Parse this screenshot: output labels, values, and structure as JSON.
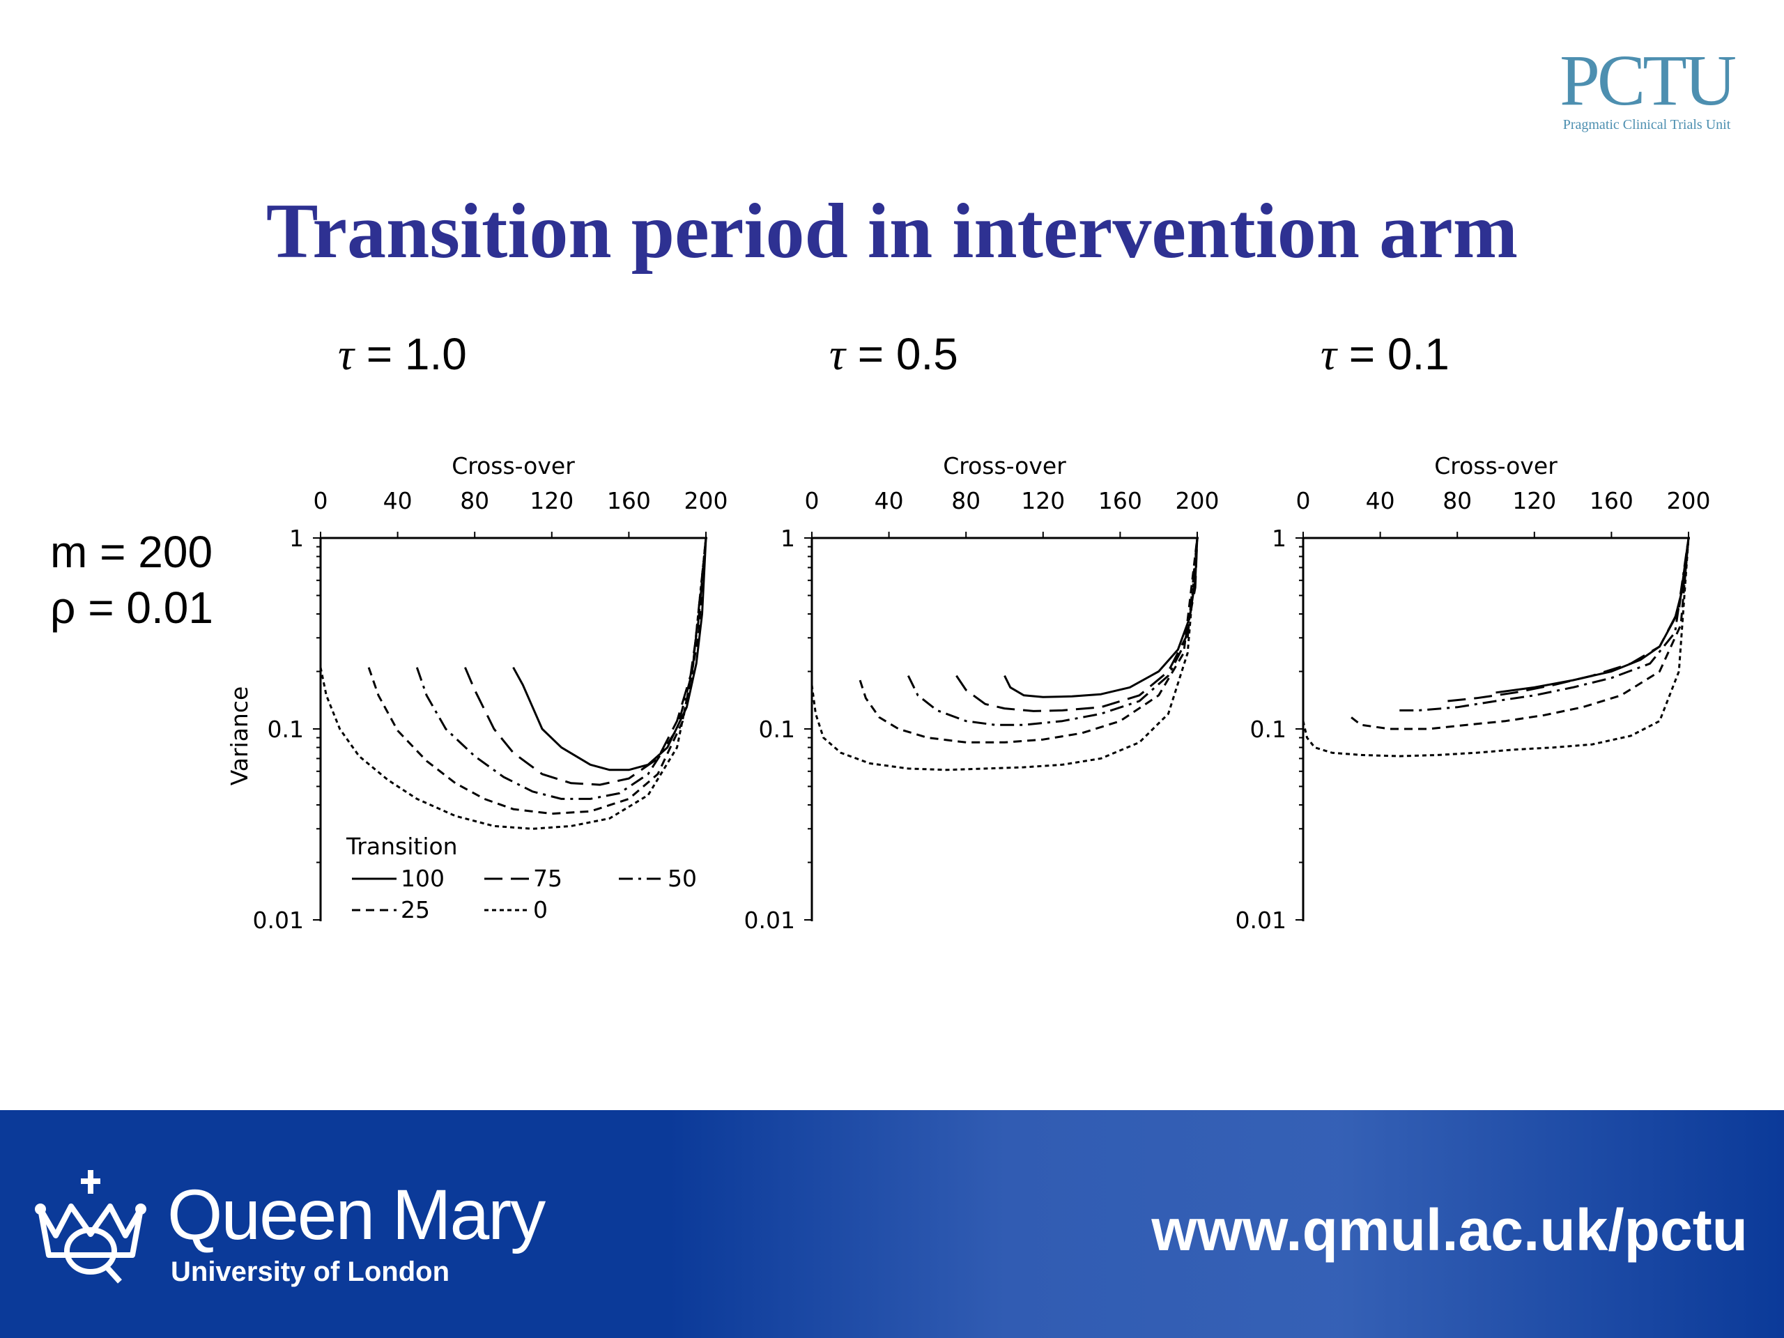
{
  "logo": {
    "mark": "PCTU",
    "subtitle": "Pragmatic Clinical Trials Unit"
  },
  "slide_title": "Transition period in intervention arm",
  "params": {
    "m_label": "m = 200",
    "rho_label": "ρ = 0.01"
  },
  "footer": {
    "brand_name": "Queen Mary",
    "brand_sub": "University of London",
    "url": "www.qmul.ac.uk/pctu",
    "background_color": "#0b3a99"
  },
  "legend": {
    "title": "Transition",
    "entries": [
      "100",
      "75",
      "50",
      "25",
      "0"
    ]
  },
  "chart_data": [
    {
      "type": "line",
      "title": "τ = 1.0",
      "xlabel": "Cross-over",
      "ylabel": "Variance",
      "x_ticks": [
        0,
        40,
        80,
        120,
        160,
        200
      ],
      "y_ticks": [
        "1",
        "0.1",
        "0.01"
      ],
      "xlim": [
        0,
        200
      ],
      "ylim": [
        0.01,
        1
      ],
      "y_scale": "log",
      "x_axis_position": "top",
      "legend_placement": "bottom-left",
      "series": [
        {
          "name": "100",
          "x": [
            100,
            105,
            115,
            125,
            140,
            150,
            160,
            170,
            180,
            190,
            195,
            198,
            200
          ],
          "y": [
            0.21,
            0.17,
            0.1,
            0.08,
            0.065,
            0.061,
            0.061,
            0.065,
            0.08,
            0.13,
            0.22,
            0.4,
            1.0
          ]
        },
        {
          "name": "75",
          "x": [
            75,
            80,
            90,
            100,
            115,
            130,
            145,
            160,
            175,
            185,
            192,
            196,
            200
          ],
          "y": [
            0.21,
            0.16,
            0.1,
            0.075,
            0.058,
            0.052,
            0.051,
            0.055,
            0.07,
            0.11,
            0.19,
            0.36,
            1.0
          ]
        },
        {
          "name": "50",
          "x": [
            50,
            55,
            65,
            80,
            95,
            110,
            125,
            140,
            155,
            170,
            185,
            193,
            200
          ],
          "y": [
            0.21,
            0.15,
            0.1,
            0.072,
            0.056,
            0.047,
            0.043,
            0.043,
            0.046,
            0.058,
            0.1,
            0.2,
            1.0
          ]
        },
        {
          "name": "25",
          "x": [
            25,
            30,
            40,
            55,
            70,
            85,
            100,
            120,
            140,
            160,
            175,
            188,
            196,
            200
          ],
          "y": [
            0.21,
            0.15,
            0.098,
            0.068,
            0.052,
            0.043,
            0.038,
            0.036,
            0.037,
            0.043,
            0.058,
            0.11,
            0.3,
            1.0
          ]
        },
        {
          "name": "0",
          "x": [
            0,
            3,
            10,
            20,
            35,
            50,
            70,
            90,
            110,
            130,
            150,
            170,
            185,
            193,
            200
          ],
          "y": [
            0.21,
            0.15,
            0.1,
            0.072,
            0.054,
            0.043,
            0.035,
            0.031,
            0.03,
            0.031,
            0.034,
            0.045,
            0.08,
            0.2,
            1.0
          ]
        }
      ]
    },
    {
      "type": "line",
      "title": "τ = 0.5",
      "xlabel": "Cross-over",
      "ylabel": "",
      "x_ticks": [
        0,
        40,
        80,
        120,
        160,
        200
      ],
      "y_ticks": [
        "1",
        "0.1",
        "0.01"
      ],
      "xlim": [
        0,
        200
      ],
      "ylim": [
        0.01,
        1
      ],
      "y_scale": "log",
      "x_axis_position": "top",
      "series": [
        {
          "name": "100",
          "x": [
            100,
            103,
            110,
            120,
            135,
            150,
            165,
            180,
            190,
            196,
            199,
            200
          ],
          "y": [
            0.19,
            0.165,
            0.15,
            0.147,
            0.148,
            0.152,
            0.165,
            0.2,
            0.26,
            0.38,
            0.6,
            1.0
          ]
        },
        {
          "name": "75",
          "x": [
            75,
            80,
            90,
            100,
            115,
            130,
            150,
            170,
            185,
            194,
            199,
            200
          ],
          "y": [
            0.19,
            0.16,
            0.135,
            0.128,
            0.124,
            0.125,
            0.13,
            0.15,
            0.2,
            0.3,
            0.55,
            1.0
          ]
        },
        {
          "name": "50",
          "x": [
            50,
            55,
            65,
            80,
            95,
            110,
            130,
            150,
            170,
            185,
            195,
            200
          ],
          "y": [
            0.19,
            0.15,
            0.125,
            0.11,
            0.105,
            0.105,
            0.11,
            0.12,
            0.14,
            0.19,
            0.3,
            1.0
          ]
        },
        {
          "name": "25",
          "x": [
            25,
            28,
            35,
            45,
            60,
            80,
            100,
            120,
            140,
            160,
            180,
            193,
            200
          ],
          "y": [
            0.18,
            0.145,
            0.115,
            0.1,
            0.09,
            0.085,
            0.085,
            0.088,
            0.095,
            0.11,
            0.15,
            0.25,
            1.0
          ]
        },
        {
          "name": "0",
          "x": [
            0,
            2,
            6,
            15,
            30,
            50,
            70,
            90,
            110,
            130,
            150,
            170,
            185,
            195,
            200
          ],
          "y": [
            0.17,
            0.12,
            0.09,
            0.075,
            0.066,
            0.062,
            0.061,
            0.062,
            0.063,
            0.065,
            0.07,
            0.085,
            0.12,
            0.25,
            1.0
          ]
        }
      ]
    },
    {
      "type": "line",
      "title": "τ = 0.1",
      "xlabel": "Cross-over",
      "ylabel": "",
      "x_ticks": [
        0,
        40,
        80,
        120,
        160,
        200
      ],
      "y_ticks": [
        "1",
        "0.1",
        "0.01"
      ],
      "xlim": [
        0,
        200
      ],
      "ylim": [
        0.01,
        1
      ],
      "y_scale": "log",
      "x_axis_position": "top",
      "series": [
        {
          "name": "100",
          "x": [
            100,
            120,
            140,
            160,
            175,
            185,
            193,
            198,
            200
          ],
          "y": [
            0.155,
            0.165,
            0.18,
            0.2,
            0.23,
            0.27,
            0.38,
            0.6,
            1.0
          ]
        },
        {
          "name": "75",
          "x": [
            75,
            90,
            110,
            130,
            150,
            170,
            185,
            195,
            200
          ],
          "y": [
            0.14,
            0.145,
            0.155,
            0.17,
            0.19,
            0.22,
            0.27,
            0.42,
            1.0
          ]
        },
        {
          "name": "50",
          "x": [
            50,
            60,
            80,
            100,
            120,
            140,
            160,
            180,
            193,
            200
          ],
          "y": [
            0.125,
            0.125,
            0.13,
            0.14,
            0.15,
            0.165,
            0.185,
            0.22,
            0.32,
            1.0
          ]
        },
        {
          "name": "25",
          "x": [
            25,
            30,
            45,
            65,
            85,
            105,
            125,
            145,
            165,
            185,
            196,
            200
          ],
          "y": [
            0.115,
            0.105,
            0.1,
            0.1,
            0.105,
            0.11,
            0.118,
            0.13,
            0.15,
            0.2,
            0.35,
            1.0
          ]
        },
        {
          "name": "0",
          "x": [
            0,
            2,
            6,
            15,
            30,
            50,
            70,
            90,
            110,
            130,
            150,
            170,
            185,
            195,
            200
          ],
          "y": [
            0.11,
            0.09,
            0.08,
            0.075,
            0.073,
            0.072,
            0.073,
            0.075,
            0.078,
            0.08,
            0.083,
            0.092,
            0.11,
            0.2,
            1.0
          ]
        }
      ]
    }
  ]
}
